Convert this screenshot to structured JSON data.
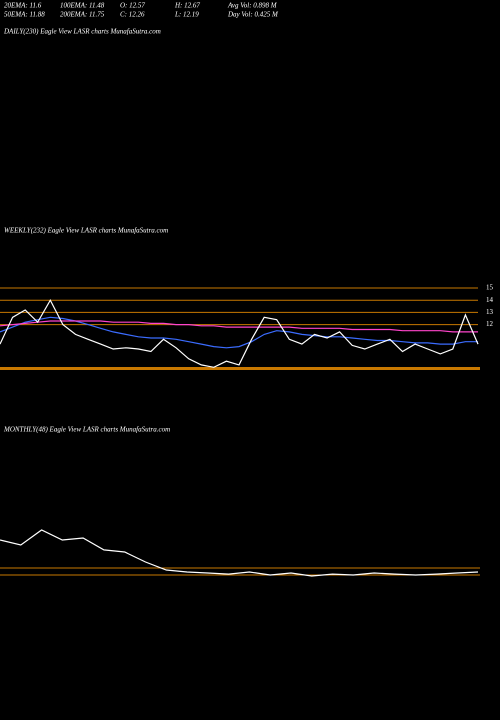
{
  "header": {
    "row1": [
      "20EMA: 11.6",
      "100EMA: 11.48",
      "O: 12.57",
      "H: 12.67",
      "Avg Vol: 0.898  M"
    ],
    "row2": [
      "50EMA: 11.88",
      "200EMA: 11.75",
      "C: 12.26",
      "L: 12.19",
      "Day Vol: 0.425  M"
    ]
  },
  "panels": {
    "daily": "DAILY(230) Eagle  View  LASR charts MunafaSutra.com",
    "weekly": "WEEKLY(232) Eagle  View  LASR charts MunafaSutra.com",
    "monthly": "MONTHLY(48) Eagle  View  LASR charts MunafaSutra.com"
  },
  "chart_data": [
    {
      "type": "line",
      "ylim": [
        8.2,
        15
      ],
      "yticks": [
        15,
        14,
        13,
        12
      ],
      "grid": true,
      "grid_color": "#c87800",
      "series": [
        {
          "color": "#3b6cff",
          "values": [
            11.4,
            11.8,
            12.2,
            12.4,
            12.6,
            12.5,
            12.3,
            12.0,
            11.7,
            11.4,
            11.2,
            11.0,
            10.9,
            10.9,
            10.8,
            10.6,
            10.4,
            10.2,
            10.1,
            10.2,
            10.6,
            11.2,
            11.5,
            11.4,
            11.2,
            11.1,
            11.0,
            11.0,
            10.9,
            10.8,
            10.7,
            10.7,
            10.6,
            10.5,
            10.5,
            10.4,
            10.4,
            10.6,
            10.6
          ]
        },
        {
          "color": "#ff44cc",
          "values": [
            11.9,
            12.0,
            12.1,
            12.2,
            12.3,
            12.3,
            12.3,
            12.3,
            12.3,
            12.2,
            12.2,
            12.2,
            12.1,
            12.1,
            12.0,
            12.0,
            11.9,
            11.9,
            11.8,
            11.8,
            11.8,
            11.8,
            11.8,
            11.8,
            11.7,
            11.7,
            11.7,
            11.7,
            11.6,
            11.6,
            11.6,
            11.6,
            11.5,
            11.5,
            11.5,
            11.5,
            11.4,
            11.4,
            11.4
          ]
        },
        {
          "color": "#ffffff",
          "values": [
            10.4,
            12.6,
            13.2,
            12.2,
            14.0,
            12.0,
            11.2,
            10.8,
            10.4,
            10.0,
            10.1,
            10.0,
            9.8,
            10.8,
            10.1,
            9.2,
            8.7,
            8.5,
            9.0,
            8.7,
            10.8,
            12.6,
            12.4,
            10.8,
            10.4,
            11.2,
            10.9,
            11.4,
            10.3,
            10.0,
            10.4,
            10.8,
            9.8,
            10.4,
            10.0,
            9.6,
            10.0,
            12.8,
            10.4
          ]
        }
      ]
    },
    {
      "type": "line",
      "ylim": [
        5,
        45
      ],
      "series": [
        {
          "color": "#ffffff",
          "values": [
            33.6,
            30.7,
            39.3,
            33.6,
            34.7,
            27.9,
            26.7,
            21.0,
            16.4,
            15.3,
            14.7,
            14.1,
            15.3,
            13.6,
            14.7,
            13.0,
            14.1,
            13.6,
            14.7,
            14.1,
            13.6,
            14.1,
            14.7,
            15.3
          ]
        }
      ]
    }
  ]
}
